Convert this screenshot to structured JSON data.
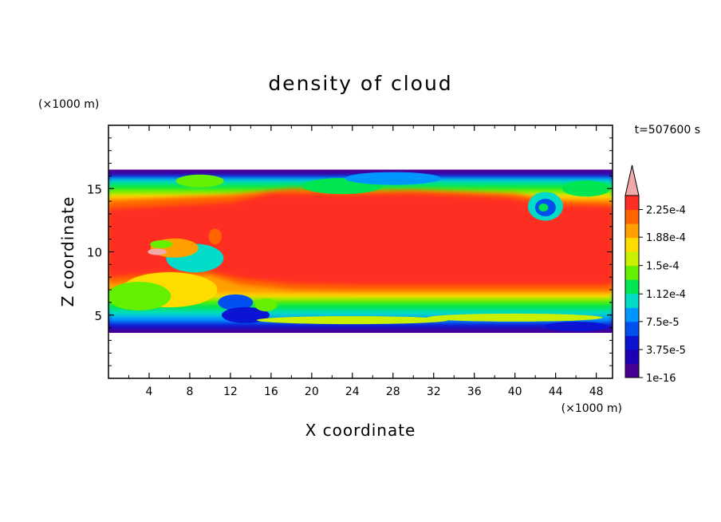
{
  "chart_data": {
    "type": "heatmap",
    "title": "density of cloud",
    "xlabel": "X coordinate",
    "ylabel": "Z coordinate",
    "x_unit": "(×1000 m)",
    "y_unit": "(×1000 m)",
    "time_label": "t=507600 s",
    "xlim": [
      0,
      49.6
    ],
    "ylim": [
      0,
      20
    ],
    "x_ticks": [
      4,
      8,
      12,
      16,
      20,
      24,
      28,
      32,
      36,
      40,
      44,
      48
    ],
    "y_ticks": [
      5,
      10,
      15
    ],
    "grid": false,
    "colorbar": {
      "labels": [
        "2.25e-4",
        "1.88e-4",
        "1.5e-4",
        "1.12e-4",
        "7.5e-5",
        "3.75e-5",
        "1e-16"
      ],
      "label_values": [
        0.000225,
        0.000188,
        0.00015,
        0.000112,
        7.5e-05,
        3.75e-05,
        1e-16
      ],
      "levels": [
        1e-16,
        1.875e-05,
        3.75e-05,
        5.625e-05,
        7.5e-05,
        9.375e-05,
        0.0001125,
        0.00013125,
        0.00015,
        0.00016875,
        0.0001875,
        0.00020625,
        0.000225,
        0.00024375
      ],
      "colors": [
        "#4b0094",
        "#1e00b4",
        "#0a14d2",
        "#0050f0",
        "#0096ff",
        "#00dcc8",
        "#00e650",
        "#64f000",
        "#c8f000",
        "#ffdc00",
        "#ffa000",
        "#ff6400",
        "#ff2d23",
        "#f0aaaa"
      ],
      "extend": "max"
    },
    "cloud_layer": {
      "base_approx": 3.5,
      "top_approx": 16.5,
      "core_value_approx": 0.00023
    }
  }
}
